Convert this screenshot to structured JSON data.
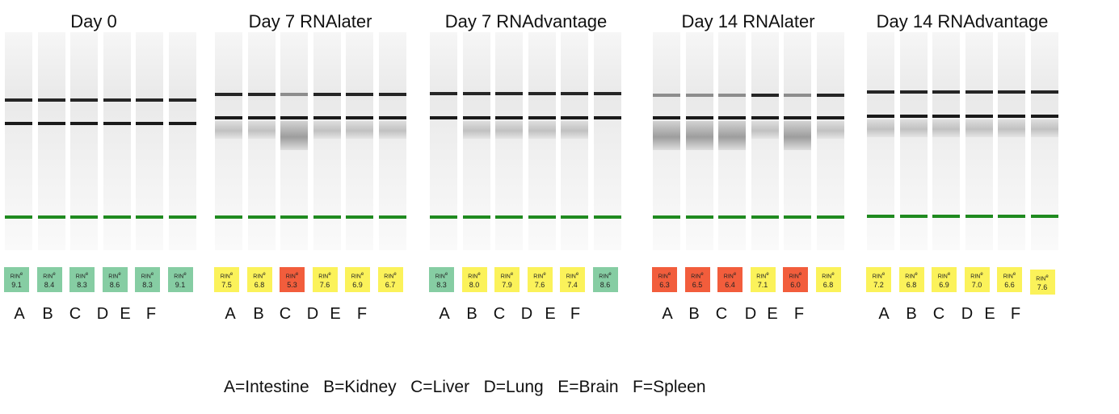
{
  "colors": {
    "green": "#86cda3",
    "yellow": "#fbf25a",
    "red": "#f25d3c",
    "marker_band": "#1f8a1f"
  },
  "rin_label": "RIN",
  "rin_superscript": "e",
  "groups": [
    {
      "title": "Day 0",
      "letters": [
        "A",
        "B",
        "C",
        "D",
        "E",
        "F"
      ],
      "lanes": [
        {
          "rin": "9.1",
          "status": "green"
        },
        {
          "rin": "8.4",
          "status": "green"
        },
        {
          "rin": "8.3",
          "status": "green"
        },
        {
          "rin": "8.6",
          "status": "green"
        },
        {
          "rin": "8.3",
          "status": "green"
        },
        {
          "rin": "9.1",
          "status": "green"
        }
      ]
    },
    {
      "title": "Day 7 RNAlater",
      "letters": [
        "A",
        "B",
        "C",
        "D",
        "E",
        "F"
      ],
      "lanes": [
        {
          "rin": "7.5",
          "status": "yellow"
        },
        {
          "rin": "6.8",
          "status": "yellow"
        },
        {
          "rin": "5.3",
          "status": "red"
        },
        {
          "rin": "7.6",
          "status": "yellow"
        },
        {
          "rin": "6.9",
          "status": "yellow"
        },
        {
          "rin": "6.7",
          "status": "yellow"
        }
      ]
    },
    {
      "title": "Day 7 RNAdvantage",
      "letters": [
        "A",
        "B",
        "C",
        "D",
        "E",
        "F"
      ],
      "lanes": [
        {
          "rin": "8.3",
          "status": "green"
        },
        {
          "rin": "8.0",
          "status": "yellow"
        },
        {
          "rin": "7.9",
          "status": "yellow"
        },
        {
          "rin": "7.6",
          "status": "yellow"
        },
        {
          "rin": "7.4",
          "status": "yellow"
        },
        {
          "rin": "8.6",
          "status": "green"
        }
      ]
    },
    {
      "title": "Day 14 RNAlater",
      "letters": [
        "A",
        "B",
        "C",
        "D",
        "E",
        "F"
      ],
      "lanes": [
        {
          "rin": "6.3",
          "status": "red"
        },
        {
          "rin": "6.5",
          "status": "red"
        },
        {
          "rin": "6.4",
          "status": "red"
        },
        {
          "rin": "7.1",
          "status": "yellow"
        },
        {
          "rin": "6.0",
          "status": "red"
        },
        {
          "rin": "6.8",
          "status": "yellow"
        }
      ]
    },
    {
      "title": "Day 14 RNAdvantage",
      "letters": [
        "A",
        "B",
        "C",
        "D",
        "E",
        "F"
      ],
      "lanes": [
        {
          "rin": "7.2",
          "status": "yellow"
        },
        {
          "rin": "6.8",
          "status": "yellow"
        },
        {
          "rin": "6.9",
          "status": "yellow"
        },
        {
          "rin": "7.0",
          "status": "yellow"
        },
        {
          "rin": "6.6",
          "status": "yellow"
        },
        {
          "rin": "7.6",
          "status": "yellow"
        }
      ]
    }
  ],
  "legend": "A=Intestine   B=Kidney   C=Liver   D=Lung   E=Brain   F=Spleen"
}
